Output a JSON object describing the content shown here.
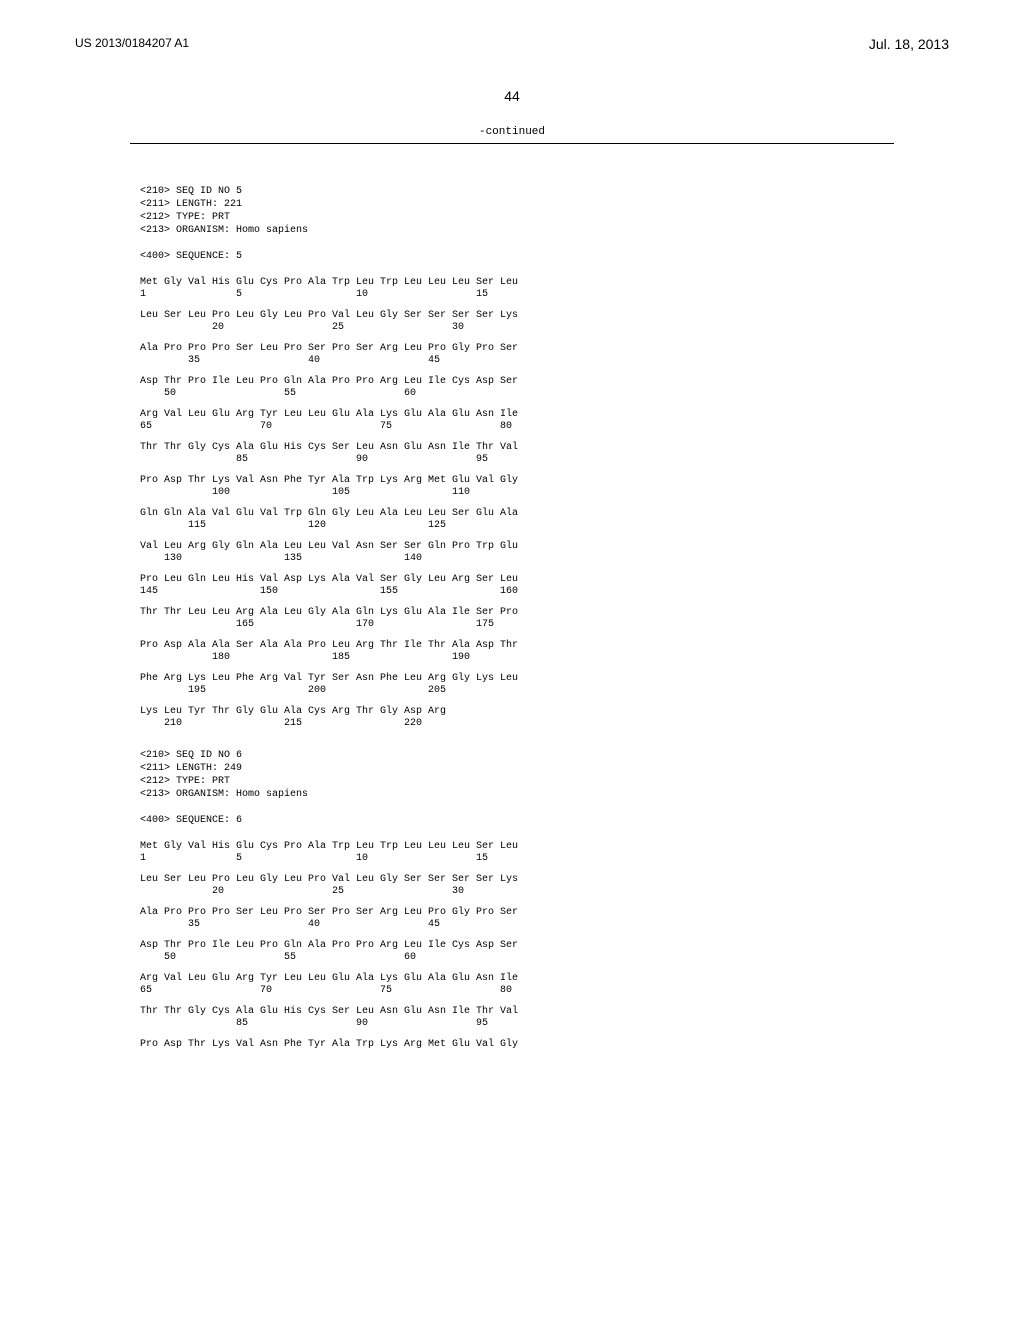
{
  "header": {
    "publication_number": "US 2013/0184207 A1",
    "publication_date": "Jul. 18, 2013"
  },
  "page_number": "44",
  "continued_label": "-continued",
  "sequences": [
    {
      "headers": [
        "<210> SEQ ID NO 5",
        "<211> LENGTH: 221",
        "<212> TYPE: PRT",
        "<213> ORGANISM: Homo sapiens"
      ],
      "label": "<400> SEQUENCE: 5",
      "rows": [
        {
          "residues": "Met Gly Val His Glu Cys Pro Ala Trp Leu Trp Leu Leu Leu Ser Leu",
          "positions": "1               5                   10                  15"
        },
        {
          "residues": "Leu Ser Leu Pro Leu Gly Leu Pro Val Leu Gly Ser Ser Ser Ser Lys",
          "positions": "            20                  25                  30"
        },
        {
          "residues": "Ala Pro Pro Pro Ser Leu Pro Ser Pro Ser Arg Leu Pro Gly Pro Ser",
          "positions": "        35                  40                  45"
        },
        {
          "residues": "Asp Thr Pro Ile Leu Pro Gln Ala Pro Pro Arg Leu Ile Cys Asp Ser",
          "positions": "    50                  55                  60"
        },
        {
          "residues": "Arg Val Leu Glu Arg Tyr Leu Leu Glu Ala Lys Glu Ala Glu Asn Ile",
          "positions": "65                  70                  75                  80"
        },
        {
          "residues": "Thr Thr Gly Cys Ala Glu His Cys Ser Leu Asn Glu Asn Ile Thr Val",
          "positions": "                85                  90                  95"
        },
        {
          "residues": "Pro Asp Thr Lys Val Asn Phe Tyr Ala Trp Lys Arg Met Glu Val Gly",
          "positions": "            100                 105                 110"
        },
        {
          "residues": "Gln Gln Ala Val Glu Val Trp Gln Gly Leu Ala Leu Leu Ser Glu Ala",
          "positions": "        115                 120                 125"
        },
        {
          "residues": "Val Leu Arg Gly Gln Ala Leu Leu Val Asn Ser Ser Gln Pro Trp Glu",
          "positions": "    130                 135                 140"
        },
        {
          "residues": "Pro Leu Gln Leu His Val Asp Lys Ala Val Ser Gly Leu Arg Ser Leu",
          "positions": "145                 150                 155                 160"
        },
        {
          "residues": "Thr Thr Leu Leu Arg Ala Leu Gly Ala Gln Lys Glu Ala Ile Ser Pro",
          "positions": "                165                 170                 175"
        },
        {
          "residues": "Pro Asp Ala Ala Ser Ala Ala Pro Leu Arg Thr Ile Thr Ala Asp Thr",
          "positions": "            180                 185                 190"
        },
        {
          "residues": "Phe Arg Lys Leu Phe Arg Val Tyr Ser Asn Phe Leu Arg Gly Lys Leu",
          "positions": "        195                 200                 205"
        },
        {
          "residues": "Lys Leu Tyr Thr Gly Glu Ala Cys Arg Thr Gly Asp Arg",
          "positions": "    210                 215                 220"
        }
      ]
    },
    {
      "headers": [
        "<210> SEQ ID NO 6",
        "<211> LENGTH: 249",
        "<212> TYPE: PRT",
        "<213> ORGANISM: Homo sapiens"
      ],
      "label": "<400> SEQUENCE: 6",
      "rows": [
        {
          "residues": "Met Gly Val His Glu Cys Pro Ala Trp Leu Trp Leu Leu Leu Ser Leu",
          "positions": "1               5                   10                  15"
        },
        {
          "residues": "Leu Ser Leu Pro Leu Gly Leu Pro Val Leu Gly Ser Ser Ser Ser Lys",
          "positions": "            20                  25                  30"
        },
        {
          "residues": "Ala Pro Pro Pro Ser Leu Pro Ser Pro Ser Arg Leu Pro Gly Pro Ser",
          "positions": "        35                  40                  45"
        },
        {
          "residues": "Asp Thr Pro Ile Leu Pro Gln Ala Pro Pro Arg Leu Ile Cys Asp Ser",
          "positions": "    50                  55                  60"
        },
        {
          "residues": "Arg Val Leu Glu Arg Tyr Leu Leu Glu Ala Lys Glu Ala Glu Asn Ile",
          "positions": "65                  70                  75                  80"
        },
        {
          "residues": "Thr Thr Gly Cys Ala Glu His Cys Ser Leu Asn Glu Asn Ile Thr Val",
          "positions": "                85                  90                  95"
        },
        {
          "residues": "Pro Asp Thr Lys Val Asn Phe Tyr Ala Trp Lys Arg Met Glu Val Gly",
          "positions": ""
        }
      ]
    }
  ]
}
